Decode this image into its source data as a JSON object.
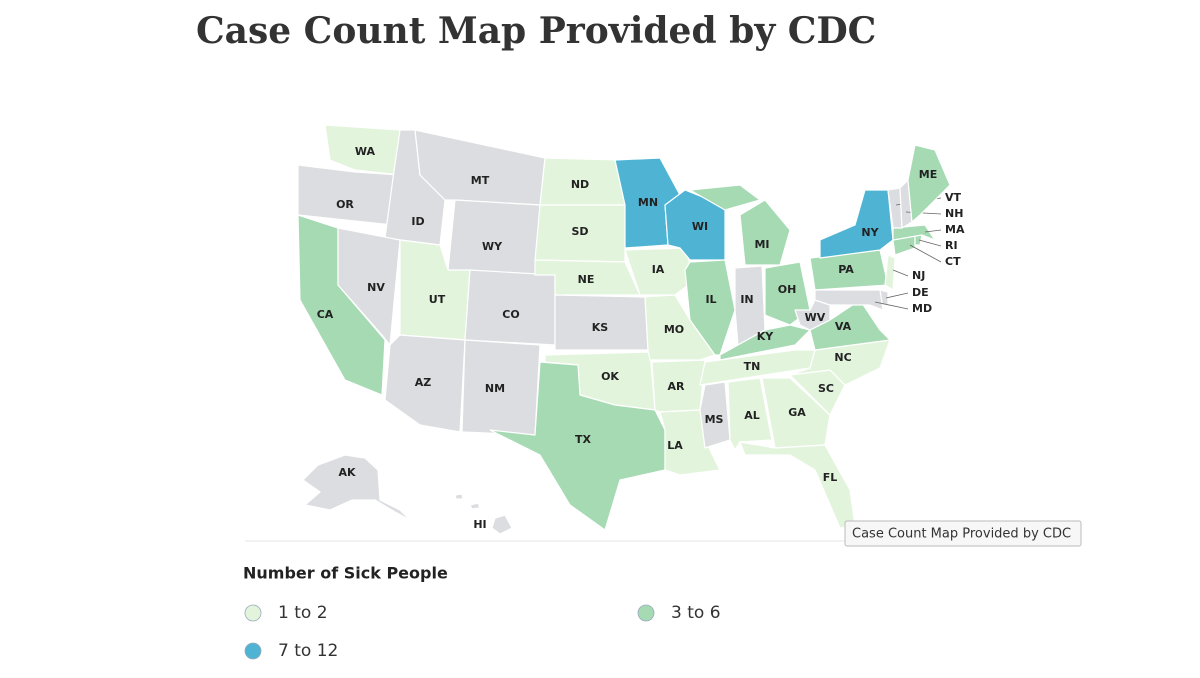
{
  "title": "Case Count Map Provided by CDC",
  "tooltip": "Case Count Map Provided by CDC",
  "legend": {
    "title": "Number of Sick People",
    "items": [
      {
        "label": "1 to 2",
        "color": "#e3f4dd"
      },
      {
        "label": "3 to 6",
        "color": "#a5dab3"
      },
      {
        "label": "7 to 12",
        "color": "#4fb4d4"
      }
    ]
  },
  "states": [
    {
      "abbr": "WA",
      "color": "#e3f4dd"
    },
    {
      "abbr": "OR",
      "color": "#dcdde0"
    },
    {
      "abbr": "CA",
      "color": "#a5dab3"
    },
    {
      "abbr": "ID",
      "color": "#dcdde0"
    },
    {
      "abbr": "NV",
      "color": "#dcdde0"
    },
    {
      "abbr": "MT",
      "color": "#dcdde0"
    },
    {
      "abbr": "WY",
      "color": "#dcdde0"
    },
    {
      "abbr": "UT",
      "color": "#e3f4dd"
    },
    {
      "abbr": "AZ",
      "color": "#dcdde0"
    },
    {
      "abbr": "CO",
      "color": "#dcdde0"
    },
    {
      "abbr": "NM",
      "color": "#dcdde0"
    },
    {
      "abbr": "ND",
      "color": "#e3f4dd"
    },
    {
      "abbr": "SD",
      "color": "#e3f4dd"
    },
    {
      "abbr": "NE",
      "color": "#e3f4dd"
    },
    {
      "abbr": "KS",
      "color": "#dcdde0"
    },
    {
      "abbr": "OK",
      "color": "#e3f4dd"
    },
    {
      "abbr": "TX",
      "color": "#a5dab3"
    },
    {
      "abbr": "MN",
      "color": "#4fb4d4"
    },
    {
      "abbr": "IA",
      "color": "#e3f4dd"
    },
    {
      "abbr": "MO",
      "color": "#e3f4dd"
    },
    {
      "abbr": "AR",
      "color": "#e3f4dd"
    },
    {
      "abbr": "LA",
      "color": "#e3f4dd"
    },
    {
      "abbr": "WI",
      "color": "#4fb4d4"
    },
    {
      "abbr": "IL",
      "color": "#a5dab3"
    },
    {
      "abbr": "MI",
      "color": "#a5dab3"
    },
    {
      "abbr": "IN",
      "color": "#dcdde0"
    },
    {
      "abbr": "OH",
      "color": "#a5dab3"
    },
    {
      "abbr": "KY",
      "color": "#a5dab3"
    },
    {
      "abbr": "TN",
      "color": "#e3f4dd"
    },
    {
      "abbr": "MS",
      "color": "#dcdde0"
    },
    {
      "abbr": "AL",
      "color": "#e3f4dd"
    },
    {
      "abbr": "GA",
      "color": "#e3f4dd"
    },
    {
      "abbr": "FL",
      "color": "#e3f4dd"
    },
    {
      "abbr": "SC",
      "color": "#e3f4dd"
    },
    {
      "abbr": "NC",
      "color": "#e3f4dd"
    },
    {
      "abbr": "VA",
      "color": "#a5dab3"
    },
    {
      "abbr": "WV",
      "color": "#dcdde0"
    },
    {
      "abbr": "PA",
      "color": "#a5dab3"
    },
    {
      "abbr": "NY",
      "color": "#4fb4d4"
    },
    {
      "abbr": "NJ",
      "color": "#e3f4dd"
    },
    {
      "abbr": "DE",
      "color": "#dcdde0"
    },
    {
      "abbr": "MD",
      "color": "#dcdde0"
    },
    {
      "abbr": "CT",
      "color": "#a5dab3"
    },
    {
      "abbr": "RI",
      "color": "#a5dab3"
    },
    {
      "abbr": "MA",
      "color": "#a5dab3"
    },
    {
      "abbr": "VT",
      "color": "#dcdde0"
    },
    {
      "abbr": "NH",
      "color": "#dcdde0"
    },
    {
      "abbr": "ME",
      "color": "#a5dab3"
    },
    {
      "abbr": "AK",
      "color": "#dcdde0"
    },
    {
      "abbr": "HI",
      "color": "#dcdde0"
    }
  ]
}
